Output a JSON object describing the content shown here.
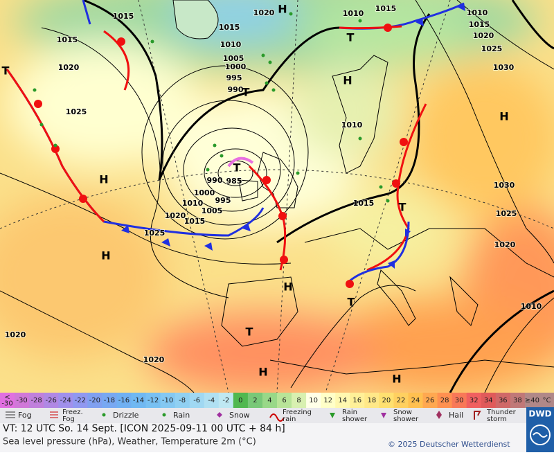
{
  "map": {
    "pressure_labels": [
      "1015",
      "1020",
      "1015",
      "1010",
      "1005",
      "1000",
      "995",
      "990",
      "1015",
      "1020",
      "1025",
      "1010",
      "1015",
      "1010",
      "1015",
      "1020",
      "1025",
      "1030",
      "1010",
      "990",
      "985",
      "1000",
      "995",
      "1010",
      "1005",
      "1020",
      "1015",
      "1025",
      "1015",
      "1030",
      "1025",
      "1020",
      "1010",
      "1020",
      "1020"
    ],
    "centers": [
      "H",
      "T",
      "H",
      "T",
      "H",
      "T",
      "H",
      "H",
      "H",
      "T",
      "T",
      "H",
      "H",
      "T",
      "T"
    ]
  },
  "temperature_scale": {
    "unit": "°C",
    "labels": [
      "<\n-30",
      "-30",
      "-28",
      "-26",
      "-24",
      "-22",
      "-20",
      "-18",
      "-16",
      "-14",
      "-12",
      "-10",
      "-8",
      "-6",
      "-4",
      "-2",
      "0",
      "2",
      "4",
      "6",
      "8",
      "10",
      "12",
      "14",
      "16",
      "18",
      "20",
      "22",
      "24",
      "26",
      "28",
      "30",
      "32",
      "34",
      "36",
      "38",
      "≥40"
    ],
    "colors": [
      "#e070e0",
      "#d078d8",
      "#c080dc",
      "#b088e4",
      "#a090ec",
      "#9098f0",
      "#80a0f0",
      "#78a8f2",
      "#70b0f2",
      "#70b8f2",
      "#78c0f2",
      "#84c8f2",
      "#90d0f2",
      "#a0d8f2",
      "#b0e0f2",
      "#bfe8f2",
      "#50b850",
      "#78c878",
      "#98d888",
      "#b8e498",
      "#d8f0b0",
      "#ffffe8",
      "#ffffc8",
      "#fff8b0",
      "#fff098",
      "#ffe888",
      "#ffe070",
      "#ffd060",
      "#ffc050",
      "#ffa850",
      "#ff9050",
      "#f87858",
      "#f06060",
      "#e05a5a",
      "#d06868",
      "#c07878",
      "#b08888"
    ]
  },
  "legend": [
    "Fog",
    "Freez.\nFog",
    "Drizzle",
    "Rain",
    "Snow",
    "Freezing\nrain",
    "Rain\nshower",
    "Snow\nshower",
    "Hail",
    "Thunder\nstorm"
  ],
  "footer": {
    "valid_time": "VT: 12 UTC So.  14 Sept. [ICON 2025-09-11  00 UTC + 84 h]",
    "description": "Sea level pressure (hPa), Weather, Temperature 2m (°C)",
    "copyright": "© 2025 Deutscher Wetterdienst",
    "logo": "DWD"
  }
}
